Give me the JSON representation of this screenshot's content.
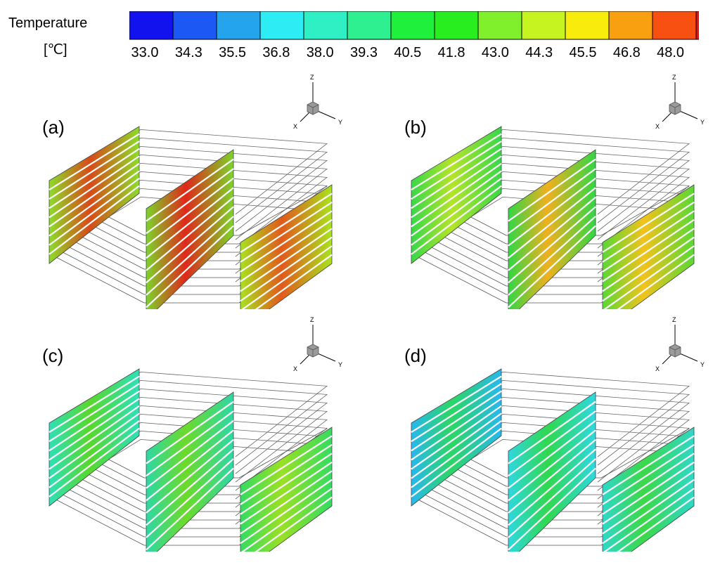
{
  "colorbar": {
    "title": "Temperature",
    "unit": "[℃]",
    "ticks": [
      "33.0",
      "34.3",
      "35.5",
      "36.8",
      "38.0",
      "39.3",
      "40.5",
      "41.8",
      "43.0",
      "44.3",
      "45.5",
      "46.8",
      "48.0"
    ],
    "colors": [
      "#1212ee",
      "#1c58f4",
      "#24a4ec",
      "#2eecf4",
      "#2ef0c4",
      "#2ef090",
      "#1ef03c",
      "#28ee20",
      "#80f02c",
      "#c6f420",
      "#f8ec0c",
      "#f8a010",
      "#f85010",
      "#f01010"
    ]
  },
  "axis_labels": {
    "z": "Z",
    "x": "X",
    "y": "Y"
  },
  "panels": [
    {
      "label": "(a)",
      "wall_colors": {
        "left": "#d84a18",
        "mid": "#e0281a",
        "right": "#e25a1c"
      },
      "edge_colors": {
        "left": "#8cdc2a",
        "mid": "#7cd42a",
        "right": "#a8e21e"
      }
    },
    {
      "label": "(b)",
      "wall_colors": {
        "left": "#b4e42a",
        "mid": "#f0b01e",
        "right": "#f2c21c"
      },
      "edge_colors": {
        "left": "#38d848",
        "mid": "#32d644",
        "right": "#5ad834"
      }
    },
    {
      "label": "(c)",
      "wall_colors": {
        "left": "#58d82c",
        "mid": "#6cda2a",
        "right": "#9ae024"
      },
      "edge_colors": {
        "left": "#2ee0b8",
        "mid": "#2ed8a4",
        "right": "#34dc60"
      }
    },
    {
      "label": "(d)",
      "wall_colors": {
        "left": "#2cd664",
        "mid": "#30d850",
        "right": "#3cd848"
      },
      "edge_colors": {
        "left": "#28b8ee",
        "mid": "#2ed8e0",
        "right": "#2ed8c8"
      }
    }
  ]
}
